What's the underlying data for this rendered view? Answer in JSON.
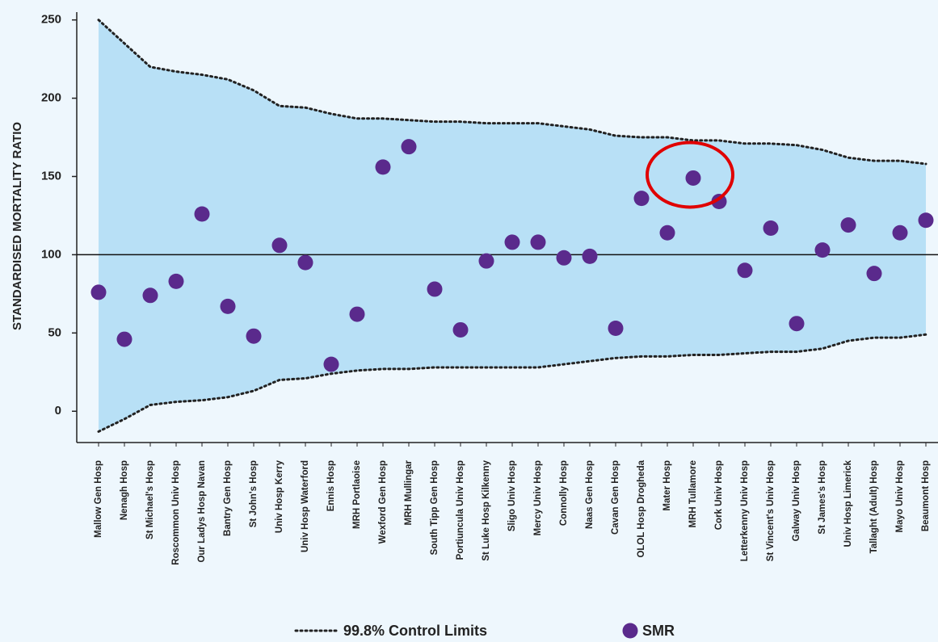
{
  "chart_data": {
    "type": "scatter",
    "y_label": "STANDARDISED MORTALITY RATIO",
    "categories": [
      "Mallow Gen Hosp",
      "Nenagh Hosp",
      "St Michael's Hosp",
      "Roscommon Univ Hosp",
      "Our Ladys Hosp Navan",
      "Bantry Gen Hosp",
      "St John's Hosp",
      "Univ Hosp Kerry",
      "Univ Hosp Waterford",
      "Ennis Hosp",
      "MRH Portlaoise",
      "Wexford Gen Hosp",
      "MRH Mullingar",
      "South Tipp Gen Hosp",
      "Portiuncula Univ Hosp",
      "St Luke Hosp Kilkenny",
      "Sligo Univ Hosp",
      "Mercy Univ Hosp",
      "Connolly Hosp",
      "Naas Gen Hosp",
      "Cavan Gen Hosp",
      "OLOL Hosp Drogheda",
      "Mater Hosp",
      "MRH Tullamore",
      "Cork Univ Hosp",
      "Letterkenny Univ Hosp",
      "St Vincent's Univ Hosp",
      "Galway Univ Hosp",
      "St James's Hosp",
      "Univ Hosp Limerick",
      "Tallaght (Adult) Hosp",
      "Mayo Univ Hosp",
      "Beaumont Hosp"
    ],
    "series": [
      {
        "name": "SMR",
        "color": "#5a2a8c",
        "values": [
          76,
          46,
          74,
          83,
          126,
          67,
          48,
          106,
          95,
          30,
          62,
          156,
          169,
          78,
          52,
          96,
          108,
          108,
          98,
          99,
          53,
          136,
          114,
          149,
          134,
          90,
          117,
          56,
          103,
          119,
          88,
          114,
          122
        ]
      }
    ],
    "control_limits": {
      "name": "99.8% Control Limits",
      "fill": "#b8e0f6",
      "color": "#222",
      "upper": [
        250,
        235,
        220,
        217,
        215,
        212,
        205,
        195,
        194,
        190,
        187,
        187,
        186,
        185,
        185,
        184,
        184,
        184,
        182,
        180,
        176,
        175,
        175,
        173,
        173,
        171,
        171,
        170,
        167,
        162,
        160,
        160,
        158
      ],
      "lower": [
        -13,
        -5,
        4,
        6,
        7,
        9,
        13,
        20,
        21,
        24,
        26,
        27,
        27,
        28,
        28,
        28,
        28,
        28,
        30,
        32,
        34,
        35,
        35,
        36,
        36,
        37,
        38,
        38,
        40,
        45,
        47,
        47,
        49
      ]
    },
    "reference_line": 100,
    "highlight": "MRH Tullamore",
    "ylim": [
      -20,
      255
    ],
    "yticks": [
      0,
      50,
      100,
      150,
      200,
      250
    ]
  }
}
